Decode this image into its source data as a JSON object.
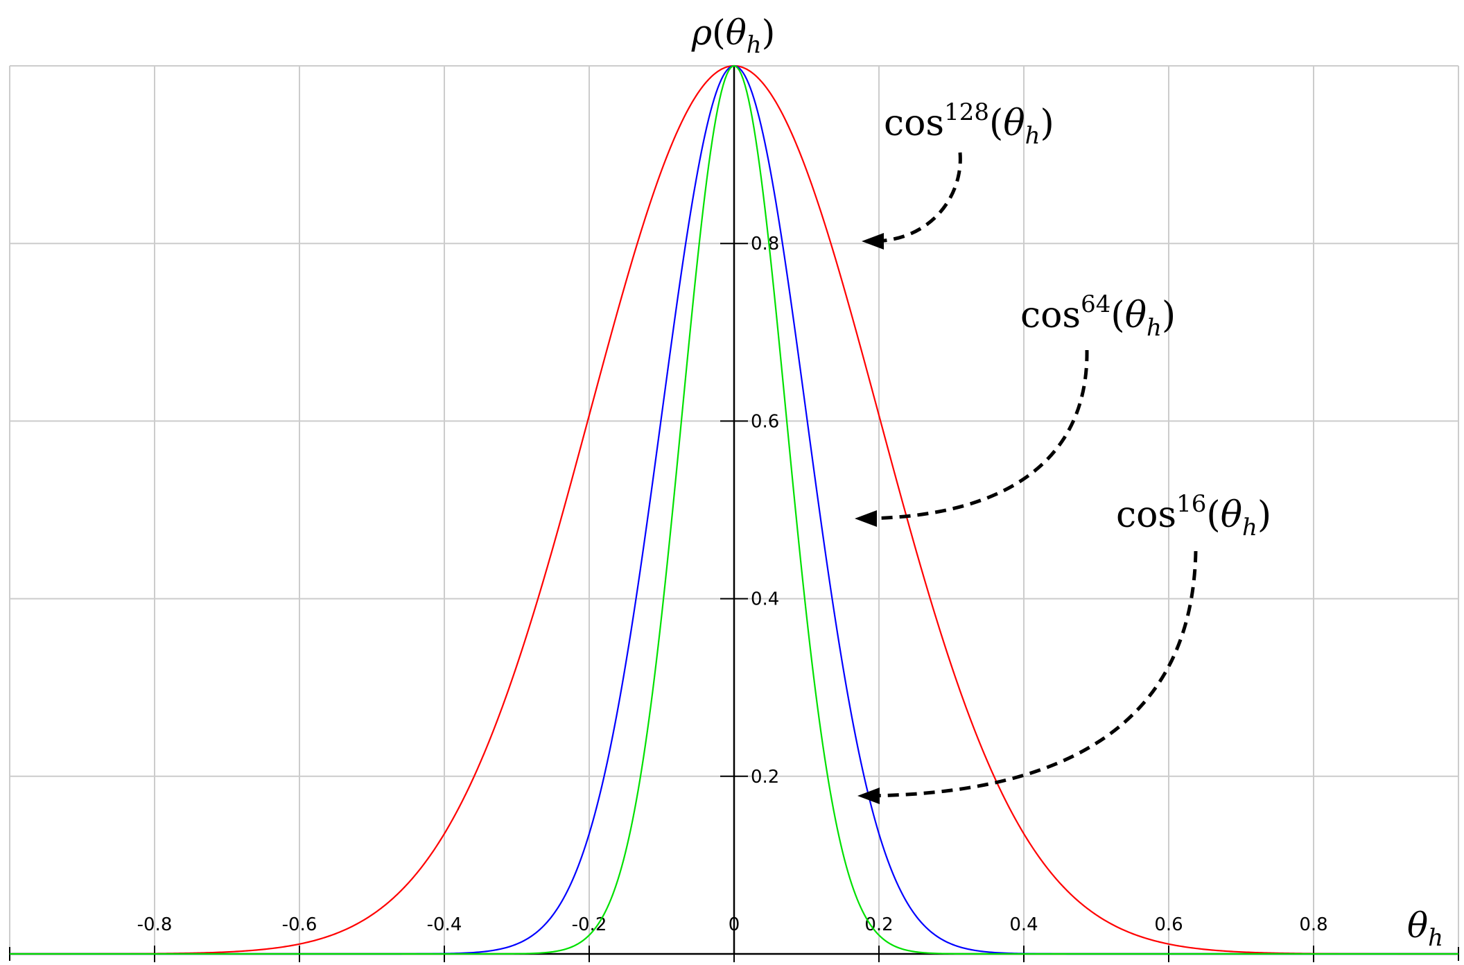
{
  "chart_data": {
    "type": "line",
    "title": "",
    "xlabel_var": "θ",
    "xlabel_sub": "h",
    "ylabel_func": "ρ",
    "ylabel_var": "θ",
    "ylabel_sub": "h",
    "xlim": [
      -1,
      1
    ],
    "ylim": [
      0,
      1
    ],
    "x_ticks": [
      -0.8,
      -0.6,
      -0.4,
      -0.2,
      0,
      0.2,
      0.4,
      0.6,
      0.8
    ],
    "x_tick_labels": [
      "-0.8",
      "-0.6",
      "-0.4",
      "-0.2",
      "0",
      "0.2",
      "0.4",
      "0.6",
      "0.8"
    ],
    "y_ticks": [
      0.2,
      0.4,
      0.6,
      0.8
    ],
    "y_tick_labels": [
      "0.2",
      "0.4",
      "0.6",
      "0.8"
    ],
    "grid": true,
    "series": [
      {
        "exponent": 16,
        "color": "#ff0000"
      },
      {
        "exponent": 64,
        "color": "#0000ff"
      },
      {
        "exponent": 128,
        "color": "#00e000"
      }
    ],
    "annotations": [
      {
        "base": "cos",
        "exponent": "128",
        "arg_var": "θ",
        "arg_sub": "h",
        "points_to_y": 0.8
      },
      {
        "base": "cos",
        "exponent": "64",
        "arg_var": "θ",
        "arg_sub": "h",
        "points_to_y": 0.49
      },
      {
        "base": "cos",
        "exponent": "16",
        "arg_var": "θ",
        "arg_sub": "h",
        "points_to_y": 0.175
      }
    ]
  }
}
